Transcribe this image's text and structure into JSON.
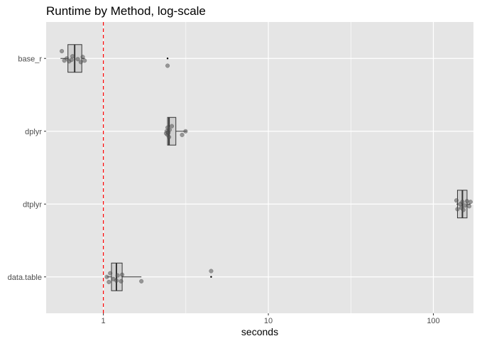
{
  "chart_data": {
    "type": "box",
    "title": "Runtime by Method, log-scale",
    "xlabel": "seconds",
    "ylabel": "",
    "x_scale": "log10",
    "xlim": [
      0.45,
      175
    ],
    "x_ticks": [
      1,
      10,
      100
    ],
    "x_tick_labels": [
      "1",
      "10",
      "100"
    ],
    "categories": [
      "base_r",
      "dplyr",
      "dtplyr",
      "data.table"
    ],
    "reference_line": {
      "x": 1,
      "color": "#ff0000",
      "style": "dashed"
    },
    "colors": {
      "panel_background": "#e5e5e5",
      "grid": "#ffffff",
      "box_fill": "#d0d0d0",
      "box_stroke": "#333333",
      "point": "#555555"
    },
    "grid": true,
    "legend": "none",
    "boxes": [
      {
        "category": "base_r",
        "whisker_low": 0.55,
        "q1": 0.61,
        "median": 0.67,
        "q3": 0.74,
        "whisker_high": 0.77,
        "outliers": [
          2.45
        ],
        "points": [
          {
            "x": 0.56,
            "offset": -0.1
          },
          {
            "x": 0.58,
            "offset": 0.03
          },
          {
            "x": 0.6,
            "offset": 0.0
          },
          {
            "x": 0.62,
            "offset": 0.04
          },
          {
            "x": 0.64,
            "offset": 0.02
          },
          {
            "x": 0.65,
            "offset": -0.03
          },
          {
            "x": 0.7,
            "offset": 0.01
          },
          {
            "x": 0.73,
            "offset": 0.05
          },
          {
            "x": 0.75,
            "offset": -0.02
          },
          {
            "x": 0.77,
            "offset": 0.03
          },
          {
            "x": 2.45,
            "offset": 0.1
          }
        ]
      },
      {
        "category": "dplyr",
        "whisker_low": 2.4,
        "q1": 2.45,
        "median": 2.5,
        "q3": 2.75,
        "whisker_high": 3.2,
        "outliers": [],
        "points": [
          {
            "x": 2.4,
            "offset": 0.03
          },
          {
            "x": 2.42,
            "offset": 0.0
          },
          {
            "x": 2.45,
            "offset": -0.05
          },
          {
            "x": 2.45,
            "offset": 0.05
          },
          {
            "x": 2.48,
            "offset": 0.02
          },
          {
            "x": 2.5,
            "offset": 0.08
          },
          {
            "x": 2.52,
            "offset": -0.02
          },
          {
            "x": 2.6,
            "offset": -0.07
          },
          {
            "x": 3.0,
            "offset": 0.05
          },
          {
            "x": 3.15,
            "offset": 0.0
          }
        ]
      },
      {
        "category": "dtplyr",
        "whisker_low": 138,
        "q1": 140,
        "median": 150,
        "q3": 160,
        "whisker_high": 168,
        "outliers": [],
        "points": [
          {
            "x": 138,
            "offset": -0.05
          },
          {
            "x": 140,
            "offset": 0.07
          },
          {
            "x": 145,
            "offset": 0.0
          },
          {
            "x": 148,
            "offset": 0.05
          },
          {
            "x": 150,
            "offset": -0.03
          },
          {
            "x": 152,
            "offset": 0.08
          },
          {
            "x": 155,
            "offset": 0.02
          },
          {
            "x": 160,
            "offset": -0.04
          },
          {
            "x": 165,
            "offset": 0.03
          },
          {
            "x": 168,
            "offset": -0.03
          }
        ]
      },
      {
        "category": "data.table",
        "whisker_low": 1.05,
        "q1": 1.12,
        "median": 1.2,
        "q3": 1.3,
        "whisker_high": 1.7,
        "outliers": [
          4.5
        ],
        "points": [
          {
            "x": 1.05,
            "offset": 0.0
          },
          {
            "x": 1.08,
            "offset": 0.07
          },
          {
            "x": 1.1,
            "offset": -0.05
          },
          {
            "x": 1.15,
            "offset": 0.03
          },
          {
            "x": 1.2,
            "offset": 0.05
          },
          {
            "x": 1.22,
            "offset": -0.02
          },
          {
            "x": 1.28,
            "offset": 0.06
          },
          {
            "x": 1.3,
            "offset": -0.03
          },
          {
            "x": 1.7,
            "offset": 0.06
          },
          {
            "x": 4.5,
            "offset": -0.08
          }
        ]
      }
    ]
  }
}
